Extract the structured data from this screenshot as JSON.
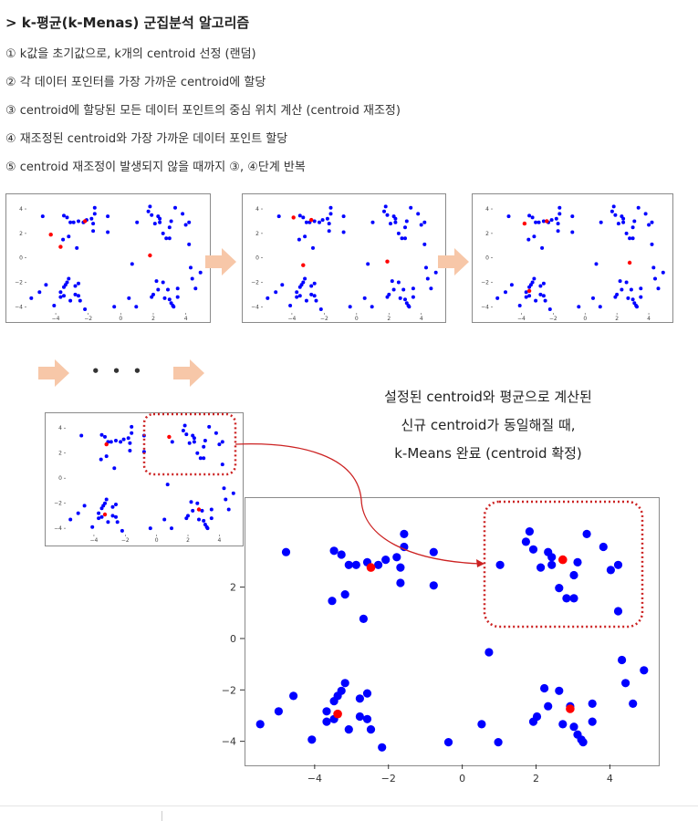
{
  "heading": "> k-평균(k-Menas) 군집분석 알고리즘",
  "steps": [
    "① k값을 초기값으로, k개의 centroid 선정 (랜덤)",
    "② 각 데이터 포인터를 가장 가까운 centroid에 할당",
    "③ centroid에 할당된 모든 데이터 포인트의 중심 위치 계산 (centroid 재조정)",
    "④ 재조정된 centroid와 가장 가까운 데이터 포인트 할당",
    "⑤ centroid 재조정이 발생되지 않을 때까지 ③, ④단계 반복"
  ],
  "dots_label": "• • •",
  "note_lines": [
    "설정된 centroid와 평균으로 계산된",
    "신규 centroid가 동일해질 때,",
    "k-Means 완료 (centroid 확정)"
  ],
  "colors": {
    "point": "#0000ff",
    "centroid": "#ff0000",
    "arrow": "#f7c7a8",
    "highlight": "#cc2222"
  },
  "chart_data": [
    {
      "type": "scatter",
      "x_ticks": [
        "−4",
        "−2",
        "0",
        "2",
        "4"
      ],
      "y_ticks": [
        "4",
        "2",
        "0",
        "−2",
        "−4"
      ],
      "centroids": [
        [
          -4.3,
          1.9
        ],
        [
          -3.7,
          0.9
        ],
        [
          -2.2,
          3.0
        ],
        [
          1.8,
          0.2
        ]
      ]
    },
    {
      "type": "scatter",
      "x_ticks": [
        "−4",
        "−2",
        "0",
        "2",
        "4"
      ],
      "y_ticks": [
        "4",
        "2",
        "0",
        "−2",
        "−4"
      ],
      "centroids": [
        [
          -3.9,
          3.3
        ],
        [
          -2.8,
          3.1
        ],
        [
          -3.3,
          -0.6
        ],
        [
          1.9,
          -0.3
        ]
      ]
    },
    {
      "type": "scatter",
      "x_ticks": [
        "−4",
        "−2",
        "0",
        "2",
        "4"
      ],
      "y_ticks": [
        "4",
        "2",
        "0",
        "−2",
        "−4"
      ],
      "centroids": [
        [
          -3.8,
          2.8
        ],
        [
          -2.4,
          3.0
        ],
        [
          -3.5,
          -2.7
        ],
        [
          2.8,
          -0.4
        ]
      ]
    },
    {
      "type": "scatter",
      "x_ticks": [
        "−4",
        "−2",
        "0",
        "2",
        "4"
      ],
      "y_ticks": [
        "4",
        "2",
        "0",
        "−2",
        "−4"
      ],
      "centroids": [
        [
          -3.2,
          2.7
        ],
        [
          0.8,
          3.3
        ],
        [
          -3.3,
          -2.9
        ],
        [
          2.7,
          -2.5
        ]
      ]
    },
    {
      "type": "scatter",
      "x_ticks": [
        "−4",
        "−2",
        "0",
        "2",
        "4"
      ],
      "y_ticks": [
        "2",
        "0",
        "−2",
        "−4"
      ],
      "centroids": [
        [
          -2.5,
          2.8
        ],
        [
          2.7,
          3.1
        ],
        [
          -3.4,
          -2.9
        ],
        [
          2.9,
          -2.7
        ]
      ]
    }
  ],
  "points": [
    [
      -4.8,
      3.4
    ],
    [
      -3.5,
      3.45
    ],
    [
      -3.3,
      3.3
    ],
    [
      -3.1,
      2.9
    ],
    [
      -2.9,
      2.9
    ],
    [
      -2.6,
      3.0
    ],
    [
      -2.3,
      2.9
    ],
    [
      -2.1,
      3.1
    ],
    [
      -1.8,
      3.2
    ],
    [
      -1.7,
      2.8
    ],
    [
      -1.6,
      4.1
    ],
    [
      -1.7,
      2.2
    ],
    [
      -1.6,
      3.6
    ],
    [
      -0.8,
      3.4
    ],
    [
      -0.8,
      2.1
    ],
    [
      -3.2,
      1.75
    ],
    [
      -3.55,
      1.5
    ],
    [
      -2.7,
      0.8
    ],
    [
      -5.5,
      -3.3
    ],
    [
      -5.0,
      -2.8
    ],
    [
      -4.6,
      -2.2
    ],
    [
      -4.1,
      -3.9
    ],
    [
      -3.7,
      -2.8
    ],
    [
      -3.7,
      -3.2
    ],
    [
      -3.5,
      -3.1
    ],
    [
      -3.5,
      -2.4
    ],
    [
      -3.4,
      -2.2
    ],
    [
      -3.3,
      -2.0
    ],
    [
      -3.2,
      -1.7
    ],
    [
      -3.1,
      -3.5
    ],
    [
      -2.8,
      -3.0
    ],
    [
      -2.8,
      -2.3
    ],
    [
      -2.6,
      -2.1
    ],
    [
      -2.6,
      -3.1
    ],
    [
      -2.5,
      -3.5
    ],
    [
      -2.2,
      -4.2
    ],
    [
      -0.4,
      -4.0
    ],
    [
      0.5,
      -3.3
    ],
    [
      0.7,
      -0.5
    ],
    [
      0.95,
      -4.0
    ],
    [
      1.0,
      2.9
    ],
    [
      1.8,
      4.2
    ],
    [
      1.7,
      3.8
    ],
    [
      1.9,
      3.5
    ],
    [
      2.1,
      2.8
    ],
    [
      2.3,
      3.4
    ],
    [
      2.4,
      3.2
    ],
    [
      2.4,
      2.9
    ],
    [
      2.6,
      2.0
    ],
    [
      2.8,
      1.6
    ],
    [
      3.0,
      1.6
    ],
    [
      3.0,
      2.5
    ],
    [
      3.1,
      3.0
    ],
    [
      3.35,
      4.1
    ],
    [
      3.8,
      3.6
    ],
    [
      4.2,
      2.9
    ],
    [
      4.2,
      1.1
    ],
    [
      4.0,
      2.7
    ],
    [
      1.9,
      -3.2
    ],
    [
      2.0,
      -3.0
    ],
    [
      2.2,
      -1.9
    ],
    [
      2.3,
      -2.6
    ],
    [
      2.6,
      -2.0
    ],
    [
      2.7,
      -3.3
    ],
    [
      2.9,
      -2.6
    ],
    [
      3.0,
      -3.4
    ],
    [
      3.1,
      -3.7
    ],
    [
      3.2,
      -3.9
    ],
    [
      3.25,
      -4.0
    ],
    [
      3.5,
      -3.2
    ],
    [
      3.5,
      -2.5
    ],
    [
      4.3,
      -0.8
    ],
    [
      4.4,
      -1.7
    ],
    [
      4.6,
      -2.5
    ],
    [
      4.9,
      -1.2
    ]
  ]
}
